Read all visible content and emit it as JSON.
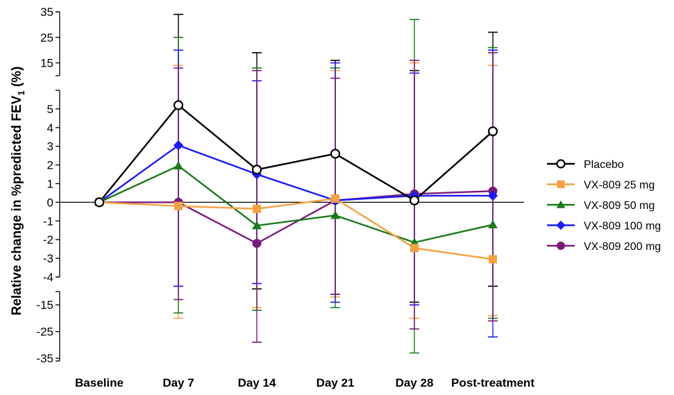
{
  "chart_data": {
    "type": "line",
    "ylabel": "Relative change in %predicted FEV",
    "ylabel_sub": "1",
    "ylabel_suffix": " (%)",
    "categories": [
      "Baseline",
      "Day 7",
      "Day 14",
      "Day 21",
      "Day 28",
      "Post-treatment"
    ],
    "y_segments": [
      {
        "name": "upper",
        "range": [
          10,
          35
        ],
        "ticks": [
          15,
          25,
          35
        ]
      },
      {
        "name": "middle",
        "range": [
          -4,
          6
        ],
        "ticks": [
          5,
          4,
          3,
          2,
          1,
          0,
          -1,
          -2,
          -3,
          -4
        ]
      },
      {
        "name": "lower",
        "range": [
          -36,
          -10
        ],
        "ticks": [
          -15,
          -25,
          -35
        ]
      }
    ],
    "legend_position": "right",
    "series": [
      {
        "name": "Placebo",
        "color": "#000000",
        "marker": "open-circle",
        "values": [
          0,
          5.2,
          1.75,
          2.6,
          0.1,
          3.8
        ],
        "err_high": [
          null,
          34,
          19,
          16,
          12,
          27
        ],
        "err_low": [
          null,
          -8,
          -9,
          -11,
          -14,
          -8
        ]
      },
      {
        "name": "VX-809 25 mg",
        "color": "#f5a142",
        "marker": "square",
        "values": [
          0,
          -0.2,
          -0.35,
          0.2,
          -2.45,
          -3.05
        ],
        "err_high": [
          null,
          14,
          12,
          12,
          15,
          14
        ],
        "err_low": [
          null,
          -20,
          -16,
          -12,
          -20,
          -19
        ]
      },
      {
        "name": "VX-809 50 mg",
        "color": "#1b7a1b",
        "marker": "triangle",
        "values": [
          0,
          1.95,
          -1.25,
          -0.7,
          -2.15,
          -1.2
        ],
        "err_high": [
          null,
          25,
          13,
          13,
          32,
          21
        ],
        "err_low": [
          null,
          -18,
          -17,
          -16,
          -33,
          -20
        ]
      },
      {
        "name": "VX-809 100 mg",
        "color": "#1a1aff",
        "marker": "diamond",
        "values": [
          0,
          3.05,
          1.5,
          0.1,
          0.35,
          0.35
        ],
        "err_high": [
          null,
          20,
          8,
          15,
          11,
          20
        ],
        "err_low": [
          null,
          -8,
          -7,
          -14,
          -15,
          -27
        ]
      },
      {
        "name": "VX-809 200 mg",
        "color": "#7b1a7b",
        "marker": "circle",
        "values": [
          0,
          0,
          -2.2,
          0.1,
          0.45,
          0.6
        ],
        "err_high": [
          null,
          13,
          12,
          9,
          16,
          19
        ],
        "err_low": [
          null,
          -13,
          -29,
          -11,
          -24,
          -21
        ]
      }
    ]
  }
}
